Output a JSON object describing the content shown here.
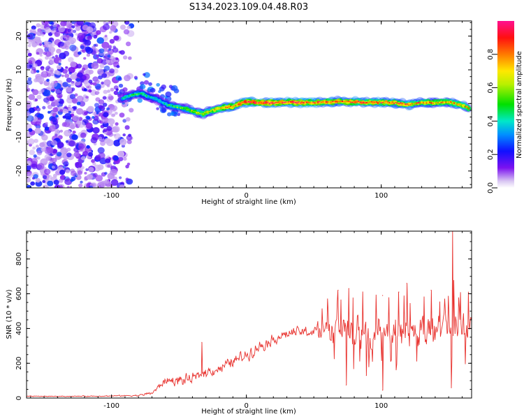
{
  "title": "S134.2023.109.04.48.R03",
  "chart_data": [
    {
      "type": "heatmap",
      "name": "spectrogram",
      "xlabel": "Height of straight line (km)",
      "ylabel": "Frequency (Hz)",
      "xlim": [
        -163,
        167
      ],
      "ylim": [
        -25,
        24.5
      ],
      "xticks": [
        -100,
        0,
        100
      ],
      "yticks": [
        -20,
        -10,
        0,
        10,
        20
      ],
      "colorbar": {
        "label": "Normalized spectral amplitude",
        "range": [
          0.0,
          1.0
        ],
        "ticks": [
          "0.0",
          "0.2",
          "0.4",
          "0.6",
          "0.8"
        ],
        "tick_values": [
          0.0,
          0.2,
          0.4,
          0.6,
          0.8
        ]
      },
      "ridge": {
        "x": [
          -92,
          -85,
          -78,
          -72,
          -65,
          -58,
          -52,
          -45,
          -38,
          -32,
          -25,
          -20,
          -15,
          -10,
          -5,
          0,
          10,
          20,
          30,
          40,
          50,
          60,
          70,
          80,
          90,
          100,
          110,
          120,
          130,
          140,
          150,
          160,
          165
        ],
        "y": [
          1.5,
          2.5,
          3,
          2,
          1,
          -0.5,
          -1,
          -1.5,
          -2.5,
          -3,
          -2,
          -1.5,
          -1,
          -1,
          0,
          0.5,
          0.3,
          0.2,
          0.4,
          0.3,
          0.3,
          0.5,
          0.6,
          0.5,
          0.3,
          0.4,
          0.2,
          -0.3,
          0.3,
          0.2,
          0.5,
          -0.5,
          -1.5
        ],
        "amplitude": [
          0.4,
          0.45,
          0.45,
          0.4,
          0.4,
          0.45,
          0.5,
          0.55,
          0.6,
          0.6,
          0.65,
          0.7,
          0.75,
          0.8,
          0.85,
          0.9,
          0.9,
          0.9,
          0.9,
          0.9,
          0.85,
          0.85,
          0.8,
          0.85,
          0.8,
          0.8,
          0.8,
          0.75,
          0.75,
          0.75,
          0.7,
          0.75,
          0.7
        ]
      },
      "noise_region_x": [
        -163,
        -85
      ]
    },
    {
      "type": "line",
      "name": "snr",
      "xlabel": "Height of straight line (km)",
      "ylabel": "SNR (10 * v/v)",
      "xlim": [
        -163,
        167
      ],
      "ylim": [
        0,
        960
      ],
      "xticks": [
        -100,
        0,
        100
      ],
      "yticks": [
        0,
        200,
        400,
        600,
        800
      ],
      "color": "#e8322e",
      "envelope": {
        "x": [
          -163,
          -130,
          -100,
          -80,
          -70,
          -60,
          -50,
          -40,
          -30,
          -20,
          -10,
          0,
          10,
          20,
          30,
          40,
          50,
          60,
          70,
          80,
          90,
          100,
          110,
          120,
          130,
          140,
          150,
          155,
          160,
          167
        ],
        "mean": [
          10,
          10,
          12,
          15,
          30,
          100,
          100,
          110,
          150,
          170,
          210,
          250,
          300,
          340,
          370,
          380,
          380,
          390,
          390,
          380,
          380,
          390,
          390,
          380,
          380,
          390,
          380,
          400,
          380,
          380
        ],
        "spread": [
          3,
          3,
          4,
          6,
          15,
          30,
          40,
          40,
          40,
          40,
          45,
          45,
          45,
          40,
          40,
          40,
          60,
          110,
          120,
          120,
          120,
          120,
          120,
          120,
          120,
          120,
          120,
          150,
          120,
          120
        ]
      },
      "peaks": [
        {
          "x": -33,
          "y": 320
        },
        {
          "x": 68,
          "y": 620
        },
        {
          "x": 76,
          "y": 630
        },
        {
          "x": 101,
          "y": 590
        },
        {
          "x": 113,
          "y": 610
        },
        {
          "x": 119,
          "y": 660
        },
        {
          "x": 137,
          "y": 620
        },
        {
          "x": 153,
          "y": 960
        },
        {
          "x": 152,
          "y": 60
        },
        {
          "x": 74,
          "y": 75
        },
        {
          "x": 101,
          "y": 45
        },
        {
          "x": 89,
          "y": 130
        }
      ]
    }
  ]
}
